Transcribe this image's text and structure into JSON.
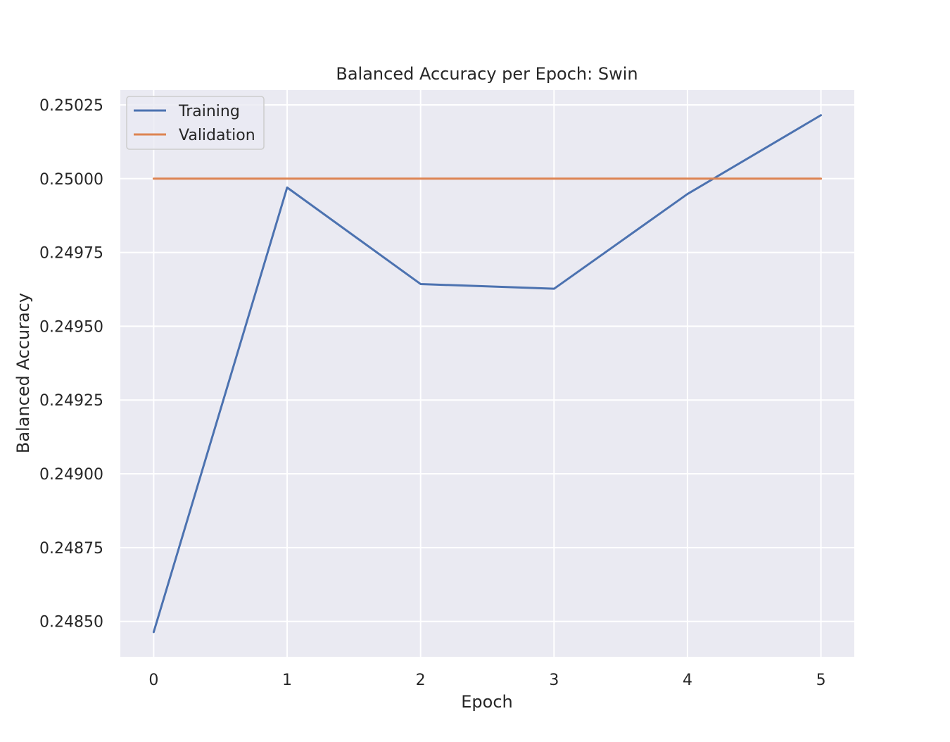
{
  "chart_data": {
    "type": "line",
    "title": "Balanced Accuracy per Epoch: Swin",
    "xlabel": "Epoch",
    "ylabel": "Balanced Accuracy",
    "x": [
      0,
      1,
      2,
      3,
      4,
      5
    ],
    "xlim": [
      -0.25,
      5.25
    ],
    "ylim": [
      0.24838,
      0.2503
    ],
    "xticks": [
      0,
      1,
      2,
      3,
      4,
      5
    ],
    "xtick_labels": [
      "0",
      "1",
      "2",
      "3",
      "4",
      "5"
    ],
    "yticks": [
      0.2485,
      0.24875,
      0.249,
      0.24925,
      0.2495,
      0.24975,
      0.25,
      0.25025
    ],
    "ytick_labels": [
      "0.24850",
      "0.24875",
      "0.24900",
      "0.24925",
      "0.24950",
      "0.24975",
      "0.25000",
      "0.25025"
    ],
    "grid": true,
    "legend_position": "top-left",
    "series": [
      {
        "name": "Training",
        "color": "#4C72B0",
        "values": [
          0.248464,
          0.24997,
          0.249643,
          0.249627,
          0.249948,
          0.250215
        ]
      },
      {
        "name": "Validation",
        "color": "#DD8452",
        "values": [
          0.25,
          0.25,
          0.25,
          0.25,
          0.25,
          0.25
        ]
      }
    ],
    "style": {
      "plot_background": "#EAEAF2",
      "grid_color": "#FFFFFF",
      "text_color": "#262626"
    }
  }
}
